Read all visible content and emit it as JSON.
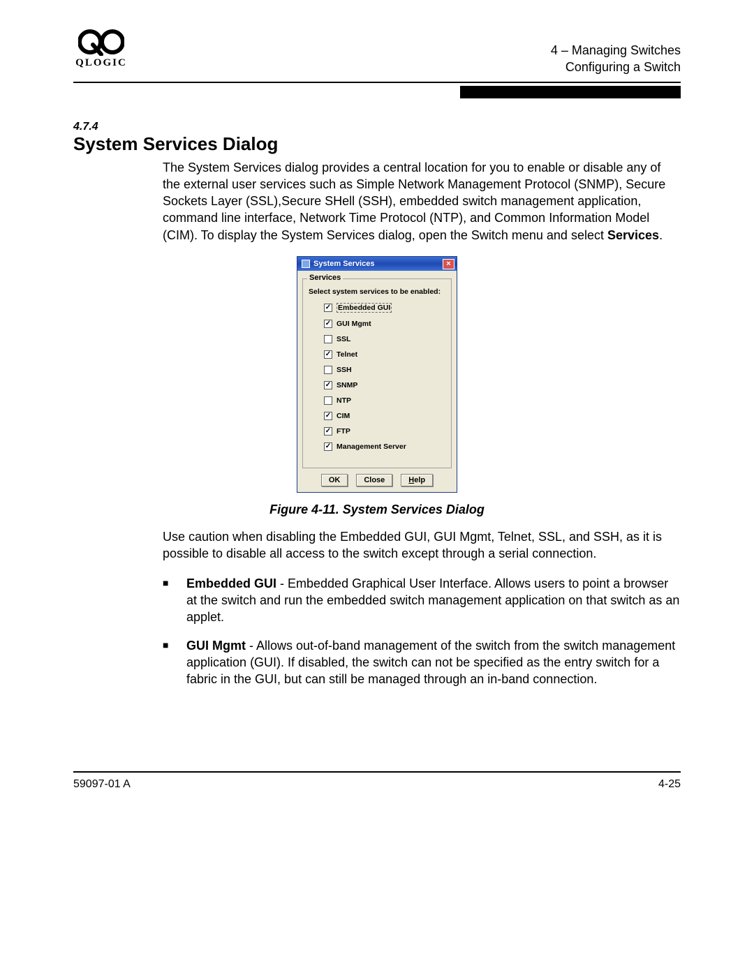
{
  "header": {
    "logo_text": "QLOGIC",
    "chapter_line": "4 – Managing Switches",
    "section_line": "Configuring a Switch"
  },
  "section": {
    "number": "4.7.4",
    "title": "System Services Dialog",
    "intro_pre": "The System Services dialog provides a central location for you to enable or disable any of the external user services such as Simple Network Management Protocol (SNMP), Secure Sockets Layer (SSL),Secure SHell (SSH), embedded switch management application, command line interface, Network Time Protocol (NTP), and Common Information Model (CIM). To display the System Services dialog, open the Switch menu and select ",
    "intro_bold": "Services",
    "intro_post": "."
  },
  "dialog": {
    "title": "System Services",
    "fieldset_legend": "Services",
    "instruction": "Select system services to be enabled:",
    "items": [
      {
        "label": "Embedded GUI",
        "checked": true,
        "highlight": true
      },
      {
        "label": "GUI Mgmt",
        "checked": true,
        "highlight": false
      },
      {
        "label": "SSL",
        "checked": false,
        "highlight": false
      },
      {
        "label": "Telnet",
        "checked": true,
        "highlight": false
      },
      {
        "label": "SSH",
        "checked": false,
        "highlight": false
      },
      {
        "label": "SNMP",
        "checked": true,
        "highlight": false
      },
      {
        "label": "NTP",
        "checked": false,
        "highlight": false
      },
      {
        "label": "CIM",
        "checked": true,
        "highlight": false
      },
      {
        "label": "FTP",
        "checked": true,
        "highlight": false
      },
      {
        "label": "Management Server",
        "checked": true,
        "highlight": false
      }
    ],
    "buttons": {
      "ok": "OK",
      "close": "Close",
      "help": "Help"
    }
  },
  "figure_caption": "Figure 4-11.  System Services Dialog",
  "caution_para": "Use caution when disabling the Embedded GUI, GUI Mgmt, Telnet, SSL, and SSH, as it is possible to disable all access to the switch except through a serial connection.",
  "bullets": [
    {
      "term": "Embedded GUI",
      "desc": " - Embedded Graphical User Interface. Allows users to point a browser at the switch and run the embedded switch management application on that switch as an applet."
    },
    {
      "term": "GUI Mgmt",
      "desc": " - Allows out-of-band management of the switch from the switch management application (GUI). If disabled, the switch can not be specified as the entry switch for a fabric in the GUI, but can still be managed through an in-band connection."
    }
  ],
  "footer": {
    "left": "59097-01 A",
    "right": "4-25"
  }
}
